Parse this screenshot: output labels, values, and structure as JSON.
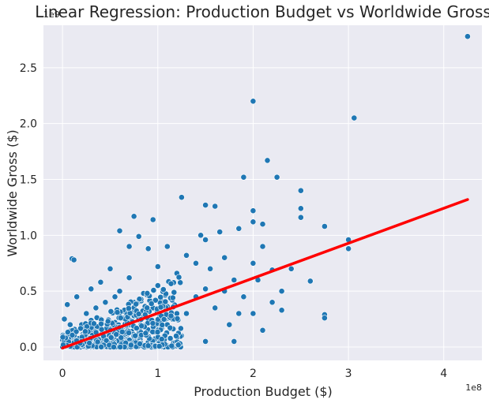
{
  "chart_data": {
    "type": "scatter",
    "title": "Linear Regression: Production Budget vs Worldwide Gross",
    "xlabel": "Production Budget ($)",
    "ylabel": "Worldwide Gross ($)",
    "x_offset_label": "1e8",
    "y_offset_label": "1e9",
    "xlim": [
      -0.2,
      4.4
    ],
    "ylim": [
      -0.12,
      2.88
    ],
    "x_ticks": [
      {
        "value": 0,
        "label": "0"
      },
      {
        "value": 1,
        "label": "1"
      },
      {
        "value": 2,
        "label": "2"
      },
      {
        "value": 3,
        "label": "3"
      },
      {
        "value": 4,
        "label": "4"
      }
    ],
    "y_ticks": [
      {
        "value": 0.0,
        "label": "0.0"
      },
      {
        "value": 0.5,
        "label": "0.5"
      },
      {
        "value": 1.0,
        "label": "1.0"
      },
      {
        "value": 1.5,
        "label": "1.5"
      },
      {
        "value": 2.0,
        "label": "2.0"
      },
      {
        "value": 2.5,
        "label": "2.5"
      }
    ],
    "grid": true,
    "colors": {
      "background": "#eaeaf2",
      "points": "#1f77b4",
      "line": "#ff0000"
    },
    "regression_line": {
      "x": [
        0.0,
        4.25
      ],
      "y": [
        -0.01,
        1.32
      ]
    },
    "points": [
      [
        4.25,
        2.78
      ],
      [
        2.0,
        2.2
      ],
      [
        3.06,
        2.05
      ],
      [
        2.15,
        1.67
      ],
      [
        1.9,
        1.52
      ],
      [
        2.25,
        1.52
      ],
      [
        2.5,
        1.4
      ],
      [
        1.25,
        1.34
      ],
      [
        1.5,
        1.27
      ],
      [
        1.6,
        1.26
      ],
      [
        2.5,
        1.24
      ],
      [
        2.0,
        1.22
      ],
      [
        0.75,
        1.17
      ],
      [
        0.95,
        1.14
      ],
      [
        2.0,
        1.12
      ],
      [
        2.75,
        1.08
      ],
      [
        0.6,
        1.04
      ],
      [
        1.65,
        1.03
      ],
      [
        1.85,
        1.06
      ],
      [
        1.45,
        1.0
      ],
      [
        2.1,
        1.1
      ],
      [
        2.5,
        1.16
      ],
      [
        1.5,
        0.96
      ],
      [
        0.8,
        0.99
      ],
      [
        3.0,
        0.96
      ],
      [
        3.0,
        0.88
      ],
      [
        2.75,
        0.29
      ],
      [
        2.75,
        0.26
      ],
      [
        2.6,
        0.59
      ],
      [
        2.3,
        0.33
      ],
      [
        2.2,
        0.69
      ],
      [
        0.1,
        0.79
      ],
      [
        0.12,
        0.78
      ],
      [
        0.5,
        0.7
      ],
      [
        0.9,
        0.88
      ],
      [
        1.1,
        0.9
      ],
      [
        1.3,
        0.82
      ],
      [
        1.4,
        0.75
      ],
      [
        1.7,
        0.8
      ],
      [
        2.0,
        0.75
      ],
      [
        1.8,
        0.6
      ],
      [
        1.2,
        0.66
      ],
      [
        1.0,
        0.55
      ],
      [
        0.7,
        0.62
      ],
      [
        0.4,
        0.58
      ],
      [
        0.3,
        0.52
      ],
      [
        0.6,
        0.5
      ],
      [
        0.85,
        0.48
      ],
      [
        1.5,
        0.52
      ],
      [
        1.9,
        0.45
      ],
      [
        2.2,
        0.4
      ],
      [
        1.6,
        0.35
      ],
      [
        1.3,
        0.3
      ],
      [
        1.75,
        0.2
      ],
      [
        1.5,
        0.05
      ],
      [
        1.8,
        0.05
      ],
      [
        2.1,
        0.15
      ],
      [
        2.4,
        0.7
      ],
      [
        2.1,
        0.9
      ],
      [
        1.55,
        0.7
      ],
      [
        1.15,
        0.42
      ],
      [
        0.95,
        0.35
      ],
      [
        0.75,
        0.28
      ],
      [
        0.55,
        0.22
      ],
      [
        0.45,
        0.4
      ],
      [
        0.25,
        0.3
      ],
      [
        0.15,
        0.45
      ],
      [
        0.05,
        0.38
      ],
      [
        0.2,
        0.2
      ],
      [
        0.35,
        0.15
      ],
      [
        0.1,
        0.1
      ],
      [
        0.05,
        0.05
      ],
      [
        0.3,
        0.05
      ],
      [
        0.6,
        0.1
      ],
      [
        0.9,
        0.15
      ],
      [
        1.1,
        0.2
      ],
      [
        1.25,
        0.1
      ],
      [
        1.0,
        0.05
      ],
      [
        0.8,
        0.02
      ],
      [
        0.5,
        0.02
      ],
      [
        0.2,
        0.02
      ],
      [
        0.0,
        0.02
      ],
      [
        0.02,
        0.25
      ],
      [
        0.08,
        0.2
      ],
      [
        0.4,
        0.25
      ],
      [
        0.65,
        0.32
      ],
      [
        0.9,
        0.25
      ],
      [
        1.2,
        0.3
      ],
      [
        1.4,
        0.45
      ],
      [
        1.7,
        0.5
      ],
      [
        1.85,
        0.3
      ],
      [
        2.0,
        0.3
      ],
      [
        2.3,
        0.5
      ],
      [
        2.05,
        0.6
      ],
      [
        0.7,
        0.9
      ],
      [
        1.0,
        0.72
      ],
      [
        0.35,
        0.35
      ],
      [
        0.55,
        0.45
      ],
      [
        0.75,
        0.4
      ],
      [
        0.85,
        0.18
      ]
    ]
  }
}
